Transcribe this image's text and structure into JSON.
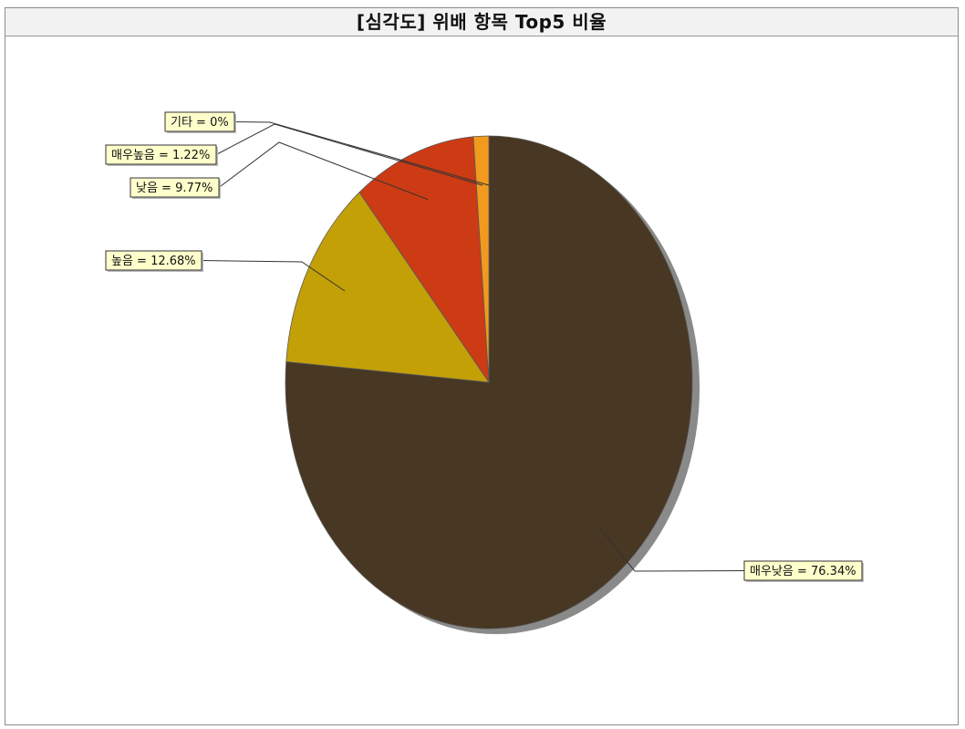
{
  "chart_data": {
    "type": "pie",
    "title": "[심각도] 위배 항목 Top5 비율",
    "categories": [
      "매우낮음",
      "높음",
      "낮음",
      "매우높음",
      "기타"
    ],
    "values": [
      76.34,
      12.68,
      9.77,
      1.22,
      0
    ],
    "labels": [
      "매우낮음 = 76.34%",
      "높음 = 12.68%",
      "낮음 = 9.77%",
      "매우높음 = 1.22%",
      "기타 = 0%"
    ],
    "colors": [
      "#473723",
      "#c4a007",
      "#cc3b14",
      "#f29a1d",
      "#2e7d32"
    ],
    "label_style": {
      "background": "#ffffcc",
      "border": "#333333"
    }
  }
}
